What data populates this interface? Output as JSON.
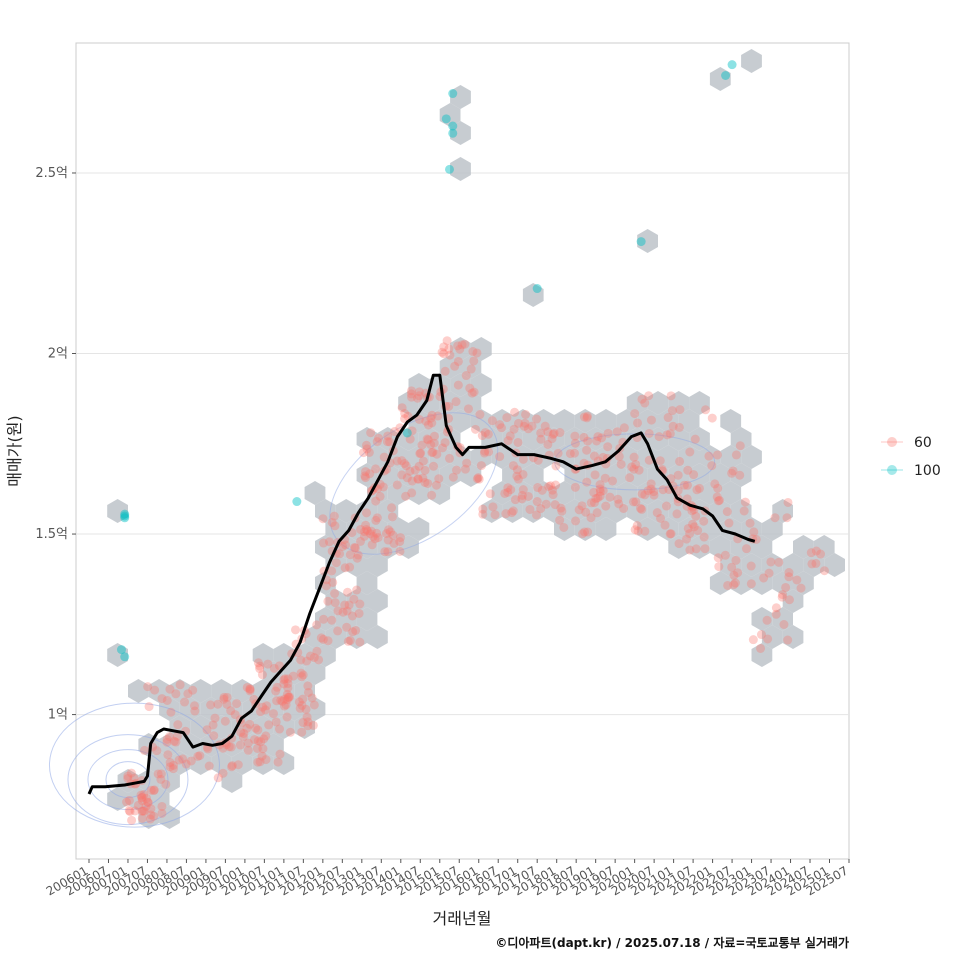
{
  "chart_data": {
    "type": "scatter",
    "xlabel": "거래년월",
    "ylabel": "매매가(원)",
    "caption": "©디아파트(dapt.kr) / 2025.07.18 / 자료=국토교통부 실거래가",
    "x_ticks": [
      "200601",
      "200607",
      "200701",
      "200707",
      "200801",
      "200807",
      "200901",
      "200907",
      "201001",
      "201007",
      "201101",
      "201107",
      "201201",
      "201207",
      "201301",
      "201307",
      "201401",
      "201407",
      "201501",
      "201507",
      "201601",
      "201607",
      "201701",
      "201707",
      "201801",
      "201807",
      "201901",
      "201907",
      "202001",
      "202007",
      "202101",
      "202107",
      "202201",
      "202207",
      "202301",
      "202307",
      "202401",
      "202407",
      "202501",
      "202507"
    ],
    "y_ticks": [
      {
        "value": 10000,
        "label": "1억"
      },
      {
        "value": 15000,
        "label": "1.5억"
      },
      {
        "value": 20000,
        "label": "2억"
      },
      {
        "value": 25000,
        "label": "2.5억"
      }
    ],
    "ylim": [
      6000,
      28600
    ],
    "xlim_months": [
      -4,
      234
    ],
    "grid": true,
    "legend_position": "right",
    "legend": [
      {
        "name": "60",
        "color": "#F8766D"
      },
      {
        "name": "100",
        "color": "#00BFC4"
      }
    ],
    "trend_line": {
      "color": "#000000",
      "points": [
        [
          "2006-01",
          7800
        ],
        [
          "2006-02",
          8000
        ],
        [
          "2006-06",
          8000
        ],
        [
          "2006-12",
          8050
        ],
        [
          "2007-03",
          8100
        ],
        [
          "2007-06",
          8150
        ],
        [
          "2007-07",
          8300
        ],
        [
          "2007-08",
          9200
        ],
        [
          "2007-10",
          9500
        ],
        [
          "2007-12",
          9600
        ],
        [
          "2008-03",
          9550
        ],
        [
          "2008-06",
          9500
        ],
        [
          "2008-09",
          9100
        ],
        [
          "2008-12",
          9200
        ],
        [
          "2009-03",
          9150
        ],
        [
          "2009-06",
          9200
        ],
        [
          "2009-09",
          9400
        ],
        [
          "2009-12",
          9900
        ],
        [
          "2010-03",
          10100
        ],
        [
          "2010-06",
          10500
        ],
        [
          "2010-09",
          10900
        ],
        [
          "2010-12",
          11200
        ],
        [
          "2011-03",
          11500
        ],
        [
          "2011-06",
          12000
        ],
        [
          "2011-09",
          12800
        ],
        [
          "2011-12",
          13500
        ],
        [
          "2012-03",
          14200
        ],
        [
          "2012-06",
          14800
        ],
        [
          "2012-09",
          15100
        ],
        [
          "2012-12",
          15600
        ],
        [
          "2013-03",
          16000
        ],
        [
          "2013-06",
          16500
        ],
        [
          "2013-09",
          17000
        ],
        [
          "2013-12",
          17700
        ],
        [
          "2014-03",
          18100
        ],
        [
          "2014-06",
          18300
        ],
        [
          "2014-09",
          18700
        ],
        [
          "2014-11",
          19400
        ],
        [
          "2015-01",
          19400
        ],
        [
          "2015-03",
          18000
        ],
        [
          "2015-06",
          17400
        ],
        [
          "2015-08",
          17200
        ],
        [
          "2015-10",
          17400
        ],
        [
          "2016-03",
          17400
        ],
        [
          "2016-08",
          17500
        ],
        [
          "2017-01",
          17200
        ],
        [
          "2017-06",
          17200
        ],
        [
          "2017-11",
          17100
        ],
        [
          "2018-03",
          17000
        ],
        [
          "2018-07",
          16800
        ],
        [
          "2018-12",
          16900
        ],
        [
          "2019-04",
          17000
        ],
        [
          "2019-08",
          17300
        ],
        [
          "2019-12",
          17700
        ],
        [
          "2020-03",
          17800
        ],
        [
          "2020-05",
          17500
        ],
        [
          "2020-08",
          16800
        ],
        [
          "2020-11",
          16500
        ],
        [
          "2021-02",
          16000
        ],
        [
          "2021-06",
          15800
        ],
        [
          "2021-10",
          15700
        ],
        [
          "2022-01",
          15500
        ],
        [
          "2022-04",
          15100
        ],
        [
          "2022-08",
          15000
        ],
        [
          "2022-12",
          14850
        ],
        [
          "2023-02",
          14800
        ]
      ]
    },
    "point_clusters": [
      {
        "series": "60",
        "month": "2006-12",
        "min": 7000,
        "max": 8400,
        "count": 40
      },
      {
        "series": "60",
        "month": "2007-06",
        "min": 8000,
        "max": 10800,
        "count": 12
      },
      {
        "series": "60",
        "month": "2008-01",
        "min": 8500,
        "max": 11000,
        "count": 25
      },
      {
        "series": "60",
        "month": "2009-01",
        "min": 8200,
        "max": 10500,
        "count": 35
      },
      {
        "series": "60",
        "month": "2010-01",
        "min": 8600,
        "max": 11500,
        "count": 45
      },
      {
        "series": "60",
        "month": "2011-01",
        "min": 9500,
        "max": 12500,
        "count": 50
      },
      {
        "series": "60",
        "month": "2012-01",
        "min": 12000,
        "max": 15500,
        "count": 55
      },
      {
        "series": "60",
        "month": "2013-01",
        "min": 14500,
        "max": 18000,
        "count": 60
      },
      {
        "series": "60",
        "month": "2014-01",
        "min": 16000,
        "max": 19000,
        "count": 55
      },
      {
        "series": "60",
        "month": "2015-01",
        "min": 16500,
        "max": 20500,
        "count": 45
      },
      {
        "series": "60",
        "month": "2016-01",
        "min": 15500,
        "max": 18500,
        "count": 35
      },
      {
        "series": "60",
        "month": "2017-01",
        "min": 15500,
        "max": 18500,
        "count": 40
      },
      {
        "series": "60",
        "month": "2018-01",
        "min": 15000,
        "max": 18500,
        "count": 35
      },
      {
        "series": "60",
        "month": "2019-01",
        "min": 15500,
        "max": 18000,
        "count": 35
      },
      {
        "series": "60",
        "month": "2020-01",
        "min": 15000,
        "max": 19000,
        "count": 45
      },
      {
        "series": "60",
        "month": "2021-01",
        "min": 14000,
        "max": 18500,
        "count": 40
      },
      {
        "series": "60",
        "month": "2022-01",
        "min": 13500,
        "max": 17500,
        "count": 30
      },
      {
        "series": "60",
        "month": "2023-01",
        "min": 11800,
        "max": 16000,
        "count": 25
      },
      {
        "series": "60",
        "month": "2024-01",
        "min": 13500,
        "max": 14800,
        "count": 8
      }
    ],
    "points_100": [
      [
        "2006-12",
        15500
      ],
      [
        "2006-12",
        15450
      ],
      [
        "2006-12",
        15550
      ],
      [
        "2006-11",
        11800
      ],
      [
        "2006-12",
        11600
      ],
      [
        "2011-05",
        15900
      ],
      [
        "2014-03",
        17800
      ],
      [
        "2015-03",
        26500
      ],
      [
        "2015-05",
        27200
      ],
      [
        "2015-05",
        26300
      ],
      [
        "2015-05",
        26100
      ],
      [
        "2015-04",
        25100
      ],
      [
        "2017-07",
        21800
      ],
      [
        "2020-03",
        23100
      ],
      [
        "2022-05",
        27700
      ],
      [
        "2022-07",
        28000
      ]
    ]
  }
}
